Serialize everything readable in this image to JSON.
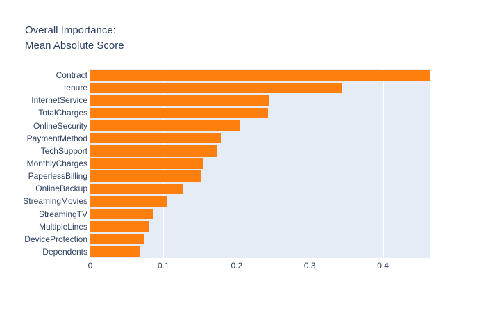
{
  "title": {
    "line1": "Overall Importance:",
    "line2": "Mean Absolute Score"
  },
  "chart_data": {
    "type": "bar",
    "orientation": "horizontal",
    "title": "Overall Importance: Mean Absolute Score",
    "xlabel": "",
    "ylabel": "",
    "categories": [
      "Contract",
      "tenure",
      "InternetService",
      "TotalCharges",
      "OnlineSecurity",
      "PaymentMethod",
      "TechSupport",
      "MonthlyCharges",
      "PaperlessBilling",
      "OnlineBackup",
      "StreamingMovies",
      "StreamingTV",
      "MultipleLines",
      "DeviceProtection",
      "Dependents"
    ],
    "values": [
      0.464,
      0.344,
      0.245,
      0.243,
      0.205,
      0.178,
      0.174,
      0.154,
      0.151,
      0.127,
      0.104,
      0.085,
      0.081,
      0.074,
      0.068
    ],
    "xlim": [
      0,
      0.464
    ],
    "x_ticks": [
      {
        "label": "0",
        "value": 0
      },
      {
        "label": "0.1",
        "value": 0.1
      },
      {
        "label": "0.2",
        "value": 0.2
      },
      {
        "label": "0.3",
        "value": 0.3
      },
      {
        "label": "0.4",
        "value": 0.4
      }
    ],
    "grid": true,
    "legend": "none",
    "colors": {
      "bar": "#ff7f0e",
      "plot_background": "#e5ecf6",
      "gridline": "#ffffff",
      "text": "#2a3f5f",
      "figure_background": "#ffffff"
    }
  }
}
